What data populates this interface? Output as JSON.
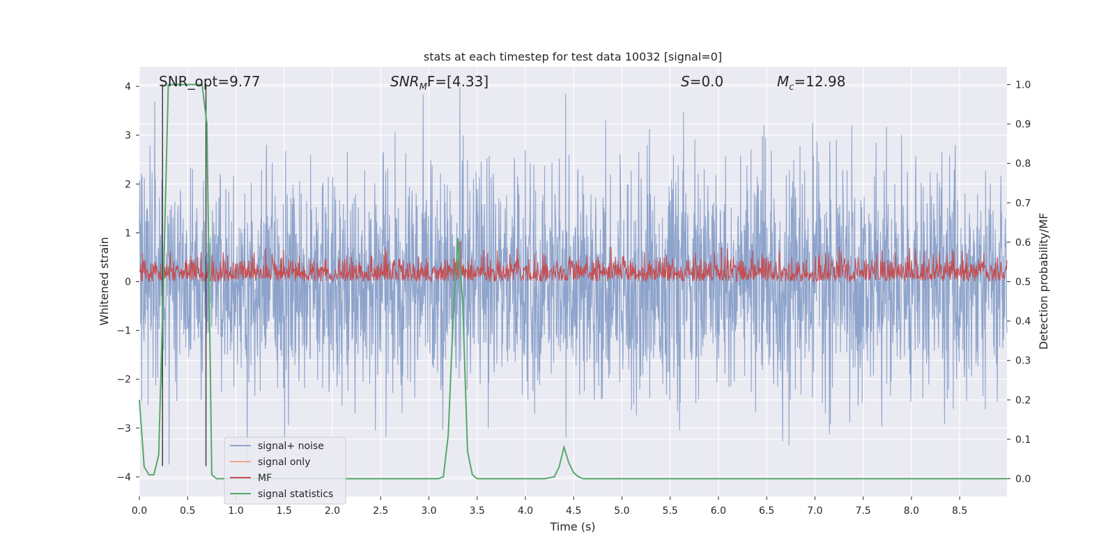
{
  "chart_data": {
    "type": "line",
    "title": "stats at each timestep for test data 10032 [signal=0]",
    "xlabel": "Time (s)",
    "ylabel_left": "Whitened strain",
    "ylabel_right": "Detection probability/MF",
    "xlim": [
      0.0,
      8.99
    ],
    "ylim_left": [
      -4.4,
      4.4
    ],
    "ylim_right": [
      -0.045,
      1.045
    ],
    "xticks": [
      "0.0",
      "0.5",
      "1.0",
      "1.5",
      "2.0",
      "2.5",
      "3.0",
      "3.5",
      "4.0",
      "4.5",
      "5.0",
      "5.5",
      "6.0",
      "6.5",
      "7.0",
      "7.5",
      "8.0",
      "8.5"
    ],
    "yticks_left": [
      "−4",
      "−3",
      "−2",
      "−1",
      "0",
      "1",
      "2",
      "3",
      "4"
    ],
    "yticks_right": [
      "0.0",
      "0.1",
      "0.2",
      "0.3",
      "0.4",
      "0.5",
      "0.6",
      "0.7",
      "0.8",
      "0.9",
      "1.0"
    ],
    "grid": true,
    "legend_position": "lower-left",
    "annotations": {
      "snr_opt": "SNR_opt=9.77",
      "snr_mf_name": "SNR",
      "snr_mf_sub": "M",
      "snr_mf_rest": "F=[4.33]",
      "s_name": "S",
      "s_rest": "=0.0",
      "mc_name": "M",
      "mc_sub": "c",
      "mc_rest": "=12.98"
    },
    "series": [
      {
        "name": "signal+ noise",
        "color": "#8da3cb",
        "axis": "left",
        "description_values": "dense whitened noise, approx. range -3.8 to 4.0",
        "noise_amplitude_peak": 4.0
      },
      {
        "name": "signal only",
        "color": "#e9a98b",
        "axis": "left",
        "values": []
      },
      {
        "name": "MF",
        "color": "#c44e52",
        "axis": "right",
        "range": [
          0.5,
          0.59
        ],
        "peak": {
          "x": 3.32,
          "y": 0.6
        }
      },
      {
        "name": "signal statistics",
        "color": "#55a868",
        "axis": "right",
        "x": [
          0.0,
          0.05,
          0.1,
          0.15,
          0.2,
          0.25,
          0.3,
          0.35,
          0.4,
          0.45,
          0.5,
          0.55,
          0.6,
          0.65,
          0.7,
          0.75,
          0.8,
          0.85,
          0.9,
          0.95,
          1.0,
          1.5,
          2.0,
          2.5,
          3.0,
          3.1,
          3.15,
          3.2,
          3.25,
          3.3,
          3.35,
          3.4,
          3.45,
          3.5,
          3.55,
          3.6,
          3.7,
          4.0,
          4.2,
          4.3,
          4.35,
          4.4,
          4.45,
          4.5,
          4.55,
          4.6,
          4.7,
          5.0,
          6.0,
          7.0,
          8.0,
          8.99
        ],
        "y": [
          0.2,
          0.03,
          0.01,
          0.01,
          0.06,
          0.5,
          1.0,
          1.0,
          1.0,
          1.0,
          1.0,
          1.0,
          1.0,
          1.0,
          0.9,
          0.01,
          0.0,
          0.0,
          0.0,
          0.0,
          0.0,
          0.0,
          0.0,
          0.0,
          0.0,
          0.0,
          0.005,
          0.11,
          0.4,
          0.61,
          0.45,
          0.07,
          0.01,
          0.0,
          0.0,
          0.0,
          0.0,
          0.0,
          0.0,
          0.005,
          0.03,
          0.08,
          0.04,
          0.015,
          0.005,
          0.0,
          0.0,
          0.0,
          0.0,
          0.0,
          0.0,
          0.0
        ]
      }
    ],
    "vertical_markers": {
      "color": "#404040",
      "x": [
        0.24,
        0.69
      ],
      "y_bottom_left_units": -3.78
    }
  }
}
